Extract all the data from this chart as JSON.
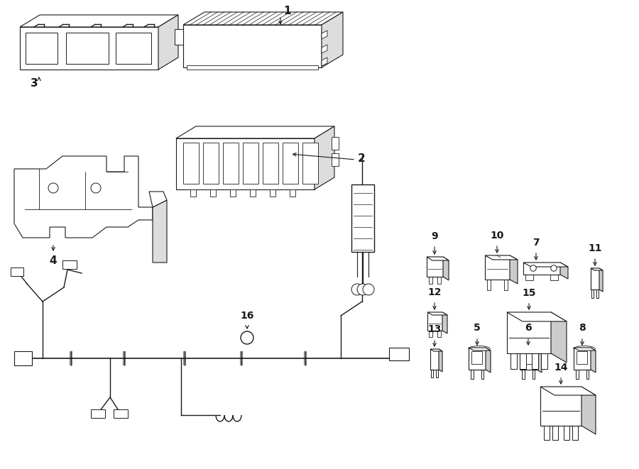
{
  "bg_color": "#ffffff",
  "line_color": "#1a1a1a",
  "fig_width": 9.0,
  "fig_height": 6.61,
  "dpi": 100,
  "lw": 0.8
}
